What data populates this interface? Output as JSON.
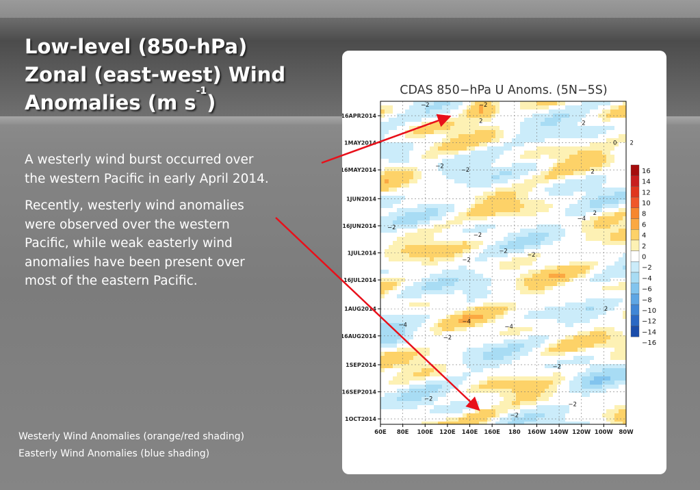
{
  "slide": {
    "title_lines": [
      "Low-level (850-hPa)",
      "Zonal (east-west) Wind",
      "Anomalies (m s"
    ],
    "title_superscript": "-1",
    "title_close": ")",
    "paragraph1_lines": [
      "A westerly wind burst occurred over",
      "the western Pacific in early April 2014."
    ],
    "paragraph2_lines": [
      "Recently, westerly wind anomalies",
      "were observed over the western",
      "Pacific, while weak easterly wind",
      "anomalies have been present over",
      "most of the eastern Pacific."
    ],
    "legend_note_westerly": "Westerly Wind Anomalies (orange/red shading)",
    "legend_note_easterly": "Easterly Wind Anomalies (blue shading)",
    "arrow_color": "#e8101a"
  },
  "chart_data": {
    "type": "heatmap",
    "title": "CDAS 850−hPa U Anoms. (5N−5S)",
    "x_tick_labels": [
      "60E",
      "80E",
      "100E",
      "120E",
      "140E",
      "160E",
      "180",
      "160W",
      "140W",
      "120W",
      "100W",
      "80W"
    ],
    "y_tick_labels": [
      "16APR2014",
      "1MAY2014",
      "16MAY2014",
      "1JUN2014",
      "16JUN2014",
      "1JUL2014",
      "16JUL2014",
      "1AUG2014",
      "16AUG2014",
      "1SEP2014",
      "16SEP2014",
      "1OCT2014"
    ],
    "colorbar_levels": [
      16,
      14,
      12,
      10,
      8,
      6,
      4,
      2,
      0,
      -2,
      -4,
      -6,
      -8,
      -10,
      -12,
      -14,
      -16
    ],
    "colorbar_labels": [
      "16",
      "14",
      "12",
      "10",
      "8",
      "6",
      "4",
      "2",
      "0",
      "−2",
      "−4",
      "−6",
      "−8",
      "−10",
      "−12",
      "−14",
      "−16"
    ],
    "colorbar_colors": [
      "#a50d0d",
      "#c81e1e",
      "#e0361e",
      "#f0562a",
      "#f7862e",
      "#fba842",
      "#fdd268",
      "#fdf1b4",
      "#ffffff",
      "#cbecfa",
      "#a8dcf4",
      "#82c4ee",
      "#5ea6e4",
      "#3f86d6",
      "#2a68c4",
      "#1a4caa",
      "#0d3590"
    ],
    "contour_labels": [
      {
        "text": "−2",
        "lon": 100,
        "date": "2014-04-11"
      },
      {
        "text": "−2",
        "lon": 152,
        "date": "2014-04-11"
      },
      {
        "text": "2",
        "lon": 150,
        "date": "2014-04-20"
      },
      {
        "text": "2",
        "lon": 242,
        "date": "2014-04-21"
      },
      {
        "text": "0",
        "lon": 270,
        "date": "2014-05-02"
      },
      {
        "text": "2",
        "lon": 285,
        "date": "2014-05-02"
      },
      {
        "text": "−2",
        "lon": 113,
        "date": "2014-05-15"
      },
      {
        "text": "−2",
        "lon": 136,
        "date": "2014-05-17"
      },
      {
        "text": "2",
        "lon": 250,
        "date": "2014-05-18"
      },
      {
        "text": "−4",
        "lon": 240,
        "date": "2014-06-13"
      },
      {
        "text": "2",
        "lon": 252,
        "date": "2014-06-10"
      },
      {
        "text": "−2",
        "lon": 147,
        "date": "2014-06-22"
      },
      {
        "text": "−2",
        "lon": 70,
        "date": "2014-06-18"
      },
      {
        "text": "−2",
        "lon": 170,
        "date": "2014-07-01"
      },
      {
        "text": "−2",
        "lon": 195,
        "date": "2014-07-03"
      },
      {
        "text": "−2",
        "lon": 137,
        "date": "2014-07-06"
      },
      {
        "text": "2",
        "lon": 290,
        "date": "2014-07-18"
      },
      {
        "text": "−4",
        "lon": 80,
        "date": "2014-08-11"
      },
      {
        "text": "−4",
        "lon": 137,
        "date": "2014-08-09"
      },
      {
        "text": "−4",
        "lon": 175,
        "date": "2014-08-12"
      },
      {
        "text": "2",
        "lon": 262,
        "date": "2014-08-02"
      },
      {
        "text": "−2",
        "lon": 120,
        "date": "2014-08-18"
      },
      {
        "text": "−2",
        "lon": 218,
        "date": "2014-09-03"
      },
      {
        "text": "−2",
        "lon": 103,
        "date": "2014-09-21"
      },
      {
        "text": "−2",
        "lon": 232,
        "date": "2014-09-24"
      },
      {
        "text": "−2",
        "lon": 180,
        "date": "2014-09-30"
      }
    ]
  }
}
